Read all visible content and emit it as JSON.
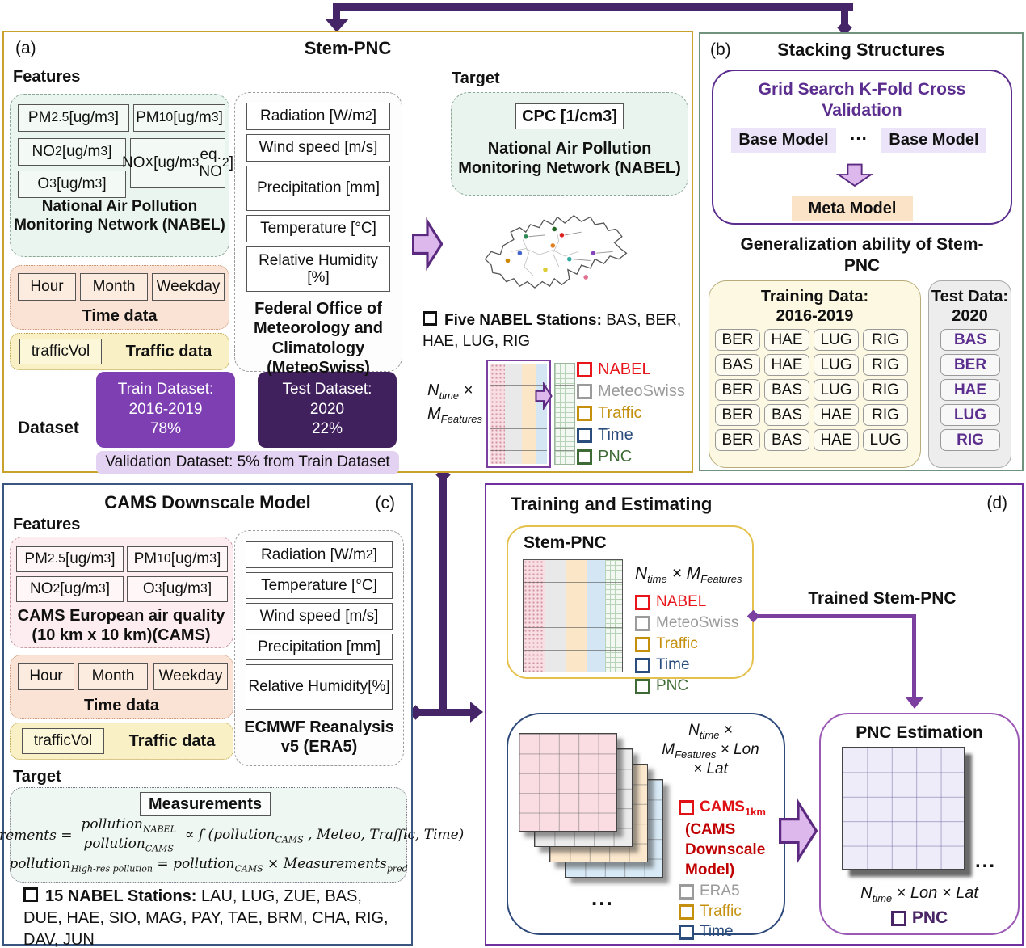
{
  "panel_a": {
    "label": "(a)",
    "title": "Stem-PNC",
    "features_heading": "Features",
    "nabel": {
      "pm25": "PM_{2.5} [ug/m^{3}]",
      "pm10": "PM_{10} [ug/m^{3}]",
      "no2": "NO_{2} [ug/m^{3}]",
      "nox": "NO_{X} [ug/m^{3} eq. NO_{2}]",
      "o3": "O_{3} [ug/m^{3}]",
      "caption": "National Air Pollution Monitoring Network (NABEL)"
    },
    "time": {
      "items": [
        "Hour",
        "Month",
        "Weekday"
      ],
      "caption": "Time data"
    },
    "traffic": {
      "item": "trafficVol",
      "caption": "Traffic data"
    },
    "meteoswiss": {
      "items": [
        "Radiation [W/m^{2}]",
        "Wind speed [m/s]",
        "Precipitation [mm]",
        "Temperature [°C]",
        "Relative Humidity [%]"
      ],
      "caption": "Federal Office of Meteorology and Climatology (MeteoSwiss)"
    },
    "dataset_label": "Dataset",
    "train": {
      "l1": "Train Dataset:",
      "l2": "2016-2019",
      "l3": "78%"
    },
    "test": {
      "l1": "Test Dataset:",
      "l2": "2020",
      "l3": "22%"
    },
    "validation": "Validation Dataset: 5% from Train Dataset",
    "target_heading": "Target",
    "cpc": "CPC [1/cm3]",
    "target_caption": "National Air Pollution Monitoring Network (NABEL)",
    "stations_bold": "Five NABEL Stations:",
    "stations_rest": " BAS, BER, HAE, LUG, RIG",
    "dims_l1": "N_{time} ×",
    "dims_l2": "M_{Features}",
    "legend": [
      {
        "label": "NABEL",
        "color": "#e8151a"
      },
      {
        "label": "MeteoSwiss",
        "color": "#9b9b9b"
      },
      {
        "label": "Traffic",
        "color": "#c4900e"
      },
      {
        "label": "Time",
        "color": "#2a4d7d"
      },
      {
        "label": "PNC",
        "color": "#3e6b35"
      }
    ]
  },
  "panel_b": {
    "label": "(b)",
    "title": "Stacking Structures",
    "cv_title": "Grid Search K-Fold Cross Validation",
    "base_model_1": "Base Model",
    "base_model_2": "Base Model",
    "dots": "···",
    "meta_model": "Meta Model",
    "gen_title": "Generalization ability of Stem-PNC",
    "training": {
      "title_l1": "Training Data:",
      "title_l2": "2016-2019",
      "rows": [
        [
          "BER",
          "HAE",
          "LUG",
          "RIG"
        ],
        [
          "BAS",
          "HAE",
          "LUG",
          "RIG"
        ],
        [
          "BER",
          "BAS",
          "LUG",
          "RIG"
        ],
        [
          "BER",
          "BAS",
          "HAE",
          "RIG"
        ],
        [
          "BER",
          "BAS",
          "HAE",
          "LUG"
        ]
      ]
    },
    "test": {
      "title_l1": "Test Data:",
      "title_l2": "2020",
      "items": [
        "BAS",
        "BER",
        "HAE",
        "LUG",
        "RIG"
      ],
      "text_color": "#5b2d8e"
    }
  },
  "panel_c": {
    "label": "(c)",
    "title": "CAMS Downscale Model",
    "features_heading": "Features",
    "cams": {
      "pm25": "PM_{2.5} [ug/m^{3}]",
      "pm10": "PM_{10} [ug/m^{3}]",
      "no2": "NO_{2} [ug/m^{3}]",
      "o3": "O_{3} [ug/m^{3}]",
      "caption": "CAMS European air quality (10 km x 10 km)(CAMS)"
    },
    "time": {
      "items": [
        "Hour",
        "Month",
        "Weekday"
      ],
      "caption": "Time data"
    },
    "traffic": {
      "item": "trafficVol",
      "caption": "Traffic data"
    },
    "era5": {
      "items": [
        "Radiation [W/m^{2}]",
        "Temperature [°C]",
        "Wind speed [m/s]",
        "Precipitation [mm]",
        "Relative Humidity[%]"
      ],
      "caption": "ECMWF Reanalysis v5 (ERA5)"
    },
    "target_heading": "Target",
    "measurements_title": "Measurements",
    "formula1": {
      "lead": "Measurements =",
      "num": "pollution_{NABEL}",
      "den": "pollution_{CAMS}",
      "tail": "∝ f (pollution_{CAMS} , Meteo, Traffic, Time)"
    },
    "formula2": "pollution_{High-res pollution} = pollution_{CAMS} × Measurements_{pred}",
    "stations_bold": "15 NABEL Stations:",
    "stations_rest": " LAU, LUG, ZUE, BAS, DUE, HAE, SIO, MAG, PAY, TAE, BRM, CHA, RIG, DAV, JUN"
  },
  "panel_d": {
    "label": "(d)",
    "title": "Training and Estimating",
    "stem_box_title": "Stem-PNC",
    "dims": "N_{time} × M_{Features}",
    "legend": [
      {
        "label": "NABEL",
        "color": "#e8151a"
      },
      {
        "label": "MeteoSwiss",
        "color": "#9b9b9b"
      },
      {
        "label": "Traffic",
        "color": "#c4900e"
      },
      {
        "label": "Time",
        "color": "#2a4d7d"
      },
      {
        "label": "PNC",
        "color": "#3e6b35"
      }
    ],
    "trained_label": "Trained Stem-PNC",
    "cube_dims_l1": "N_{time} ×",
    "cube_dims_l2": "M_{Features} × Lon",
    "cube_dims_l3": "× Lat",
    "cube_legend_cams": {
      "label": "CAMS_{1km}",
      "color": "#e01216"
    },
    "cube_legend_cams_l1": "(CAMS",
    "cube_legend_cams_l2": "Downscale",
    "cube_legend_cams_l3": "Model)",
    "cube_legend_cams_sub_color": "#c00000",
    "cube_legend_rest": [
      {
        "label": "ERA5",
        "color": "#9b9b9b"
      },
      {
        "label": "Traffic",
        "color": "#c4900e"
      },
      {
        "label": "Time",
        "color": "#2a4d7d"
      }
    ],
    "stack_dots": "...",
    "pnc_box": {
      "title": "PNC Estimation",
      "dots": "...",
      "dims": "N_{time} × Lon × Lat",
      "legend_label": "PNC",
      "legend_color": "#4a2566"
    }
  }
}
